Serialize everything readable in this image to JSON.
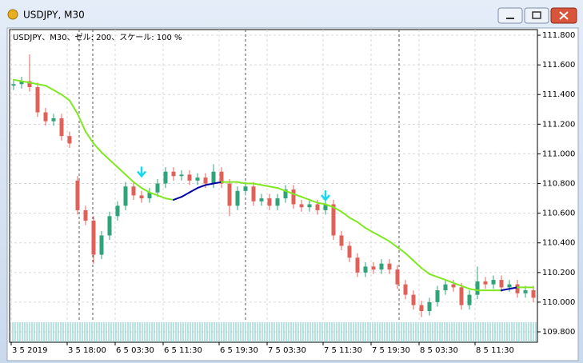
{
  "window": {
    "title": "USDJPY, M30"
  },
  "chart_data": {
    "type": "candlestick",
    "info": "USDJPY、M30、ゼル: 200、スケール: 100 %",
    "categories": [
      "3 5 2019",
      null,
      null,
      null,
      null,
      null,
      null,
      "3 5 18:00",
      null,
      null,
      null,
      null,
      null,
      "6 5 03:30",
      null,
      null,
      null,
      null,
      null,
      "6 5 11:30",
      null,
      null,
      null,
      null,
      null,
      null,
      "6 5 19:30",
      null,
      null,
      null,
      null,
      null,
      "7 5 03:30",
      null,
      null,
      null,
      null,
      null,
      null,
      "7 5 11:30",
      null,
      null,
      null,
      null,
      null,
      "7 5 19:30",
      null,
      null,
      null,
      null,
      null,
      "8 5 03:30",
      null,
      null,
      null,
      null,
      null,
      null,
      "8 5 11:30",
      null,
      null,
      null,
      null,
      null,
      null,
      null
    ],
    "open": [
      111.46,
      111.47,
      111.49,
      111.45,
      111.28,
      111.22,
      111.24,
      111.12,
      110.82,
      110.62,
      110.55,
      110.32,
      110.45,
      110.58,
      110.65,
      110.78,
      110.72,
      110.7,
      110.74,
      110.8,
      110.88,
      110.85,
      110.86,
      110.82,
      110.84,
      110.8,
      110.88,
      110.8,
      110.65,
      110.75,
      110.78,
      110.68,
      110.7,
      110.65,
      110.7,
      110.76,
      110.66,
      110.64,
      110.66,
      110.62,
      110.66,
      110.45,
      110.38,
      110.3,
      110.2,
      110.24,
      110.22,
      110.26,
      110.22,
      110.12,
      110.05,
      109.98,
      109.94,
      110.0,
      110.08,
      110.12,
      110.1,
      109.98,
      110.05,
      110.14,
      110.12,
      110.15,
      110.1,
      110.12,
      110.06,
      110.08
    ],
    "high": [
      111.5,
      111.52,
      111.67,
      111.48,
      111.31,
      111.27,
      111.27,
      111.15,
      110.85,
      110.65,
      110.58,
      110.48,
      110.61,
      110.68,
      110.81,
      110.81,
      110.75,
      110.77,
      110.83,
      110.91,
      110.91,
      110.89,
      110.89,
      110.87,
      110.87,
      110.93,
      110.91,
      110.83,
      110.78,
      110.81,
      110.81,
      110.73,
      110.73,
      110.73,
      110.79,
      110.79,
      110.69,
      110.69,
      110.69,
      110.69,
      110.69,
      110.48,
      110.41,
      110.33,
      110.27,
      110.27,
      110.29,
      110.29,
      110.25,
      110.15,
      110.08,
      110.01,
      110.03,
      110.11,
      110.15,
      110.15,
      110.13,
      110.08,
      110.24,
      110.17,
      110.18,
      110.18,
      110.15,
      110.15,
      110.11,
      110.11
    ],
    "low": [
      111.43,
      111.44,
      111.42,
      111.25,
      111.19,
      111.19,
      111.09,
      111.04,
      110.59,
      110.52,
      110.26,
      110.29,
      110.42,
      110.55,
      110.62,
      110.69,
      110.67,
      110.67,
      110.71,
      110.77,
      110.82,
      110.82,
      110.79,
      110.79,
      110.77,
      110.77,
      110.77,
      110.58,
      110.62,
      110.72,
      110.65,
      110.65,
      110.62,
      110.62,
      110.67,
      110.63,
      110.61,
      110.61,
      110.59,
      110.59,
      110.42,
      110.35,
      110.27,
      110.17,
      110.17,
      110.19,
      110.19,
      110.19,
      110.09,
      110.02,
      109.95,
      109.9,
      109.91,
      109.97,
      110.05,
      110.07,
      109.95,
      109.95,
      110.02,
      110.09,
      110.09,
      110.07,
      110.07,
      110.03,
      110.03,
      110.0
    ],
    "close": [
      111.47,
      111.49,
      111.45,
      111.28,
      111.22,
      111.24,
      111.12,
      111.07,
      110.62,
      110.55,
      110.32,
      110.45,
      110.58,
      110.65,
      110.78,
      110.72,
      110.7,
      110.74,
      110.8,
      110.88,
      110.85,
      110.86,
      110.82,
      110.84,
      110.8,
      110.88,
      110.8,
      110.65,
      110.75,
      110.78,
      110.68,
      110.7,
      110.65,
      110.7,
      110.76,
      110.66,
      110.64,
      110.66,
      110.62,
      110.66,
      110.45,
      110.38,
      110.3,
      110.2,
      110.24,
      110.22,
      110.26,
      110.22,
      110.12,
      110.05,
      109.98,
      109.94,
      110.0,
      110.08,
      110.12,
      110.1,
      109.98,
      110.05,
      110.14,
      110.12,
      110.15,
      110.1,
      110.12,
      110.06,
      110.08,
      110.03
    ],
    "up_color": "#2fa37a",
    "down_color": "#e0605a",
    "moving_average": {
      "color": "#80e820",
      "up_color": "#0000a8",
      "values": [
        111.5,
        111.49,
        111.48,
        111.47,
        111.46,
        111.43,
        111.4,
        111.36,
        111.27,
        111.15,
        111.07,
        111.01,
        110.96,
        110.91,
        110.86,
        110.81,
        110.77,
        110.74,
        110.72,
        110.7,
        110.69,
        110.71,
        110.74,
        110.77,
        110.79,
        110.8,
        110.81,
        110.81,
        110.81,
        110.8,
        110.8,
        110.79,
        110.78,
        110.77,
        110.75,
        110.73,
        110.71,
        110.69,
        110.67,
        110.66,
        110.64,
        110.61,
        110.57,
        110.54,
        110.5,
        110.47,
        110.44,
        110.41,
        110.37,
        110.33,
        110.28,
        110.23,
        110.19,
        110.17,
        110.15,
        110.13,
        110.11,
        110.09,
        110.08,
        110.08,
        110.08,
        110.08,
        110.09,
        110.1,
        110.1,
        110.1
      ]
    },
    "signals": {
      "color": "#18d8f0",
      "values": [
        null,
        null,
        null,
        null,
        null,
        null,
        null,
        null,
        null,
        null,
        null,
        null,
        null,
        null,
        null,
        null,
        110.86,
        null,
        null,
        null,
        null,
        null,
        null,
        null,
        null,
        null,
        null,
        null,
        null,
        null,
        null,
        null,
        null,
        null,
        null,
        null,
        null,
        null,
        null,
        110.7,
        null,
        null,
        null,
        null,
        null,
        null,
        null,
        null,
        null,
        null,
        null,
        null,
        null,
        null,
        null,
        null,
        null,
        null,
        null,
        null,
        null,
        null,
        null,
        null,
        null,
        null
      ]
    },
    "ylim": [
      109.73,
      111.838
    ],
    "yticks": [
      {
        "value": 111.8,
        "label": "111.800"
      },
      {
        "value": 111.6,
        "label": "111.600"
      },
      {
        "value": 111.4,
        "label": "111.400"
      },
      {
        "value": 111.2,
        "label": "111.200"
      },
      {
        "value": 111.0,
        "label": "111.000"
      },
      {
        "value": 110.8,
        "label": "110.800"
      },
      {
        "value": 110.6,
        "label": "110.600"
      },
      {
        "value": 110.4,
        "label": "110.400"
      },
      {
        "value": 110.2,
        "label": "110.200"
      },
      {
        "value": 110.0,
        "label": "110.000"
      },
      {
        "value": 109.8,
        "label": "109.800"
      }
    ],
    "grid": true
  }
}
